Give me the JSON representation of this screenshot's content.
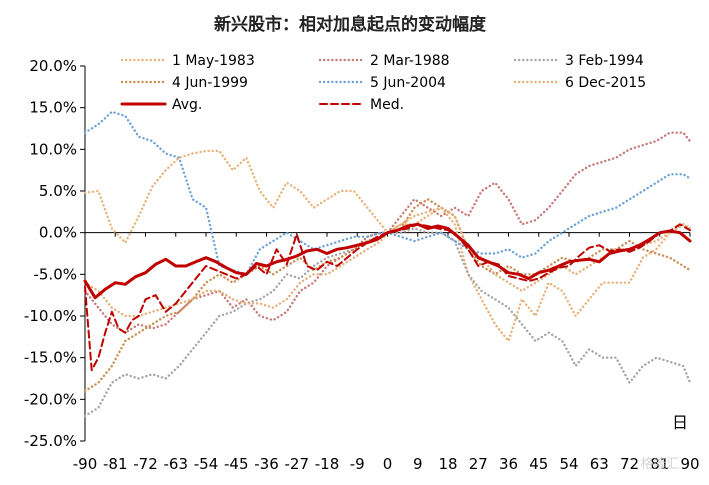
{
  "chart_data": {
    "type": "line",
    "title": "新兴股市：相对加息起点的变动幅度",
    "xlabel": "日",
    "ylabel": "",
    "x_ticks": [
      "-90",
      "-81",
      "-72",
      "-63",
      "-54",
      "-45",
      "-36",
      "-27",
      "-18",
      "-9",
      "0",
      "9",
      "18",
      "27",
      "36",
      "45",
      "54",
      "63",
      "72",
      "81",
      "90"
    ],
    "ylim": [
      -0.25,
      0.2
    ],
    "y_ticks": [
      "20.0%",
      "15.0%",
      "10.0%",
      "5.0%",
      "0.0%",
      "-5.0%",
      "-10.0%",
      "-15.0%",
      "-20.0%",
      "-25.0%"
    ],
    "grid": false,
    "legend_placement": "top",
    "watermark": "格隆汇",
    "series": [
      {
        "name": "1 May-1983",
        "color": "#E8B27A",
        "style": "dotted",
        "x": [
          -90,
          -86,
          -82,
          -78,
          -74,
          -70,
          -66,
          -62,
          -58,
          -54,
          -50,
          -46,
          -42,
          -38,
          -34,
          -30,
          -26,
          -22,
          -18,
          -14,
          -10,
          -6,
          -2,
          0,
          4,
          8,
          12,
          16,
          20,
          24,
          28,
          32,
          36,
          40,
          44,
          48,
          52,
          56,
          60,
          64,
          68,
          72,
          76,
          80,
          84,
          88,
          90
        ],
        "y": [
          0.048,
          0.05,
          0.005,
          -0.012,
          0.02,
          0.055,
          0.075,
          0.09,
          0.095,
          0.098,
          0.098,
          0.075,
          0.09,
          0.05,
          0.03,
          0.06,
          0.05,
          0.03,
          0.04,
          0.05,
          0.05,
          0.03,
          0.01,
          0.0,
          0.01,
          0.01,
          0.02,
          0.03,
          0.01,
          -0.05,
          -0.08,
          -0.11,
          -0.13,
          -0.08,
          -0.1,
          -0.06,
          -0.07,
          -0.1,
          -0.08,
          -0.06,
          -0.06,
          -0.06,
          -0.03,
          -0.02,
          0.0,
          0.01,
          0.005
        ]
      },
      {
        "name": "2 Mar-1988",
        "color": "#C77A7A",
        "style": "dotted",
        "x": [
          -90,
          -86,
          -82,
          -78,
          -74,
          -70,
          -66,
          -62,
          -58,
          -54,
          -50,
          -46,
          -42,
          -38,
          -34,
          -30,
          -26,
          -22,
          -18,
          -14,
          -10,
          -6,
          -2,
          0,
          4,
          8,
          12,
          16,
          20,
          24,
          28,
          32,
          36,
          40,
          44,
          48,
          52,
          56,
          60,
          64,
          68,
          72,
          76,
          80,
          84,
          88,
          90
        ],
        "y": [
          -0.07,
          -0.09,
          -0.11,
          -0.12,
          -0.11,
          -0.115,
          -0.11,
          -0.095,
          -0.08,
          -0.075,
          -0.07,
          -0.09,
          -0.08,
          -0.1,
          -0.105,
          -0.095,
          -0.07,
          -0.06,
          -0.04,
          -0.03,
          -0.02,
          -0.005,
          0.0,
          0.0,
          0.02,
          0.04,
          0.03,
          0.02,
          0.03,
          0.02,
          0.05,
          0.06,
          0.04,
          0.01,
          0.015,
          0.03,
          0.05,
          0.07,
          0.08,
          0.085,
          0.09,
          0.1,
          0.105,
          0.11,
          0.12,
          0.12,
          0.11
        ]
      },
      {
        "name": "3 Feb-1994",
        "color": "#A6A6A6",
        "style": "dotted",
        "x": [
          -90,
          -86,
          -82,
          -78,
          -74,
          -70,
          -66,
          -62,
          -58,
          -54,
          -50,
          -46,
          -42,
          -38,
          -34,
          -30,
          -26,
          -22,
          -18,
          -14,
          -10,
          -6,
          -2,
          0,
          4,
          8,
          12,
          16,
          20,
          24,
          28,
          32,
          36,
          40,
          44,
          48,
          52,
          56,
          60,
          64,
          68,
          72,
          76,
          80,
          84,
          88,
          90
        ],
        "y": [
          -0.22,
          -0.21,
          -0.18,
          -0.17,
          -0.175,
          -0.17,
          -0.175,
          -0.16,
          -0.14,
          -0.12,
          -0.1,
          -0.095,
          -0.085,
          -0.08,
          -0.07,
          -0.05,
          -0.055,
          -0.04,
          -0.03,
          -0.025,
          -0.02,
          -0.01,
          -0.005,
          0.0,
          0.0,
          0.005,
          0.0,
          0.0,
          -0.01,
          -0.05,
          -0.07,
          -0.08,
          -0.09,
          -0.11,
          -0.13,
          -0.12,
          -0.13,
          -0.16,
          -0.14,
          -0.15,
          -0.15,
          -0.18,
          -0.16,
          -0.15,
          -0.155,
          -0.16,
          -0.18
        ]
      },
      {
        "name": "4 Jun-1999",
        "color": "#C98E54",
        "style": "dotted",
        "x": [
          -90,
          -86,
          -82,
          -78,
          -74,
          -70,
          -66,
          -62,
          -58,
          -54,
          -50,
          -46,
          -42,
          -38,
          -34,
          -30,
          -26,
          -22,
          -18,
          -14,
          -10,
          -6,
          -2,
          0,
          4,
          8,
          12,
          16,
          20,
          24,
          28,
          32,
          36,
          40,
          44,
          48,
          52,
          56,
          60,
          64,
          68,
          72,
          76,
          80,
          84,
          88,
          90
        ],
        "y": [
          -0.19,
          -0.18,
          -0.16,
          -0.13,
          -0.12,
          -0.11,
          -0.1,
          -0.095,
          -0.08,
          -0.06,
          -0.05,
          -0.06,
          -0.05,
          -0.04,
          -0.05,
          -0.04,
          -0.03,
          -0.045,
          -0.035,
          -0.03,
          -0.02,
          -0.01,
          -0.005,
          0.0,
          0.005,
          0.03,
          0.04,
          0.03,
          0.02,
          -0.02,
          -0.04,
          -0.05,
          -0.04,
          -0.05,
          -0.05,
          -0.04,
          -0.03,
          -0.035,
          -0.03,
          -0.02,
          -0.02,
          -0.01,
          -0.02,
          -0.025,
          -0.03,
          -0.04,
          -0.045
        ]
      },
      {
        "name": "5 Jun-2004",
        "color": "#6FA3D6",
        "style": "dotted",
        "x": [
          -90,
          -86,
          -82,
          -78,
          -74,
          -70,
          -66,
          -62,
          -58,
          -54,
          -50,
          -46,
          -42,
          -38,
          -34,
          -30,
          -26,
          -22,
          -18,
          -14,
          -10,
          -6,
          -2,
          0,
          4,
          8,
          12,
          16,
          20,
          24,
          28,
          32,
          36,
          40,
          44,
          48,
          52,
          56,
          60,
          64,
          68,
          72,
          76,
          80,
          84,
          88,
          90
        ],
        "y": [
          0.12,
          0.13,
          0.145,
          0.14,
          0.115,
          0.11,
          0.095,
          0.09,
          0.04,
          0.03,
          -0.04,
          -0.045,
          -0.05,
          -0.02,
          -0.01,
          0.0,
          -0.01,
          -0.02,
          -0.015,
          -0.01,
          -0.005,
          -0.005,
          0.0,
          0.0,
          -0.005,
          -0.01,
          -0.005,
          0.0,
          -0.01,
          -0.02,
          -0.025,
          -0.025,
          -0.02,
          -0.03,
          -0.025,
          -0.01,
          0.0,
          0.01,
          0.02,
          0.025,
          0.03,
          0.04,
          0.05,
          0.06,
          0.07,
          0.07,
          0.065
        ]
      },
      {
        "name": "6 Dec-2015",
        "color": "#E3B07A",
        "style": "dotted",
        "x": [
          -90,
          -86,
          -82,
          -78,
          -74,
          -70,
          -66,
          -62,
          -58,
          -54,
          -50,
          -46,
          -42,
          -38,
          -34,
          -30,
          -26,
          -22,
          -18,
          -14,
          -10,
          -6,
          -2,
          0,
          4,
          8,
          12,
          16,
          20,
          24,
          28,
          32,
          36,
          40,
          44,
          48,
          52,
          56,
          60,
          64,
          68,
          72,
          76,
          80,
          84,
          88,
          90
        ],
        "y": [
          -0.06,
          -0.07,
          -0.09,
          -0.1,
          -0.1,
          -0.095,
          -0.09,
          -0.085,
          -0.08,
          -0.07,
          -0.07,
          -0.08,
          -0.085,
          -0.085,
          -0.09,
          -0.08,
          -0.06,
          -0.05,
          -0.05,
          -0.04,
          -0.03,
          -0.02,
          -0.01,
          0.0,
          0.01,
          0.02,
          0.025,
          0.03,
          0.02,
          -0.02,
          -0.03,
          -0.05,
          -0.06,
          -0.07,
          -0.06,
          -0.05,
          -0.04,
          -0.05,
          -0.04,
          -0.03,
          -0.02,
          -0.02,
          -0.015,
          -0.01,
          0.0,
          0.01,
          0.005
        ]
      },
      {
        "name": "Avg.",
        "color": "#C00000",
        "style": "solid",
        "x": [
          -90,
          -87,
          -84,
          -81,
          -78,
          -75,
          -72,
          -69,
          -66,
          -63,
          -60,
          -57,
          -54,
          -51,
          -48,
          -45,
          -42,
          -39,
          -36,
          -33,
          -30,
          -27,
          -24,
          -21,
          -18,
          -15,
          -12,
          -9,
          -6,
          -3,
          0,
          3,
          6,
          9,
          12,
          15,
          18,
          21,
          24,
          27,
          30,
          33,
          36,
          39,
          42,
          45,
          48,
          51,
          54,
          57,
          60,
          63,
          66,
          69,
          72,
          75,
          78,
          81,
          84,
          87,
          90
        ],
        "y": [
          -0.058,
          -0.078,
          -0.068,
          -0.06,
          -0.062,
          -0.053,
          -0.048,
          -0.038,
          -0.032,
          -0.04,
          -0.04,
          -0.035,
          -0.03,
          -0.035,
          -0.042,
          -0.048,
          -0.05,
          -0.037,
          -0.04,
          -0.035,
          -0.032,
          -0.028,
          -0.022,
          -0.02,
          -0.025,
          -0.02,
          -0.018,
          -0.015,
          -0.012,
          -0.008,
          0.0,
          0.003,
          0.008,
          0.01,
          0.005,
          0.008,
          0.005,
          -0.005,
          -0.015,
          -0.03,
          -0.035,
          -0.04,
          -0.048,
          -0.05,
          -0.055,
          -0.048,
          -0.045,
          -0.04,
          -0.035,
          -0.033,
          -0.032,
          -0.035,
          -0.025,
          -0.022,
          -0.02,
          -0.015,
          -0.008,
          0.0,
          0.002,
          0.0,
          -0.01
        ]
      },
      {
        "name": "Med.",
        "color": "#C00000",
        "style": "dashed",
        "x": [
          -90,
          -88,
          -86,
          -84,
          -82,
          -80,
          -78,
          -76,
          -74,
          -72,
          -69,
          -66,
          -63,
          -60,
          -57,
          -54,
          -51,
          -48,
          -45,
          -42,
          -39,
          -36,
          -33,
          -30,
          -27,
          -24,
          -21,
          -18,
          -15,
          -12,
          -9,
          -6,
          -3,
          0,
          3,
          6,
          9,
          12,
          15,
          18,
          21,
          24,
          27,
          30,
          33,
          36,
          39,
          42,
          45,
          48,
          51,
          54,
          57,
          60,
          63,
          66,
          69,
          72,
          75,
          78,
          81,
          84,
          87,
          90
        ],
        "y": [
          -0.065,
          -0.165,
          -0.15,
          -0.12,
          -0.095,
          -0.115,
          -0.12,
          -0.105,
          -0.1,
          -0.08,
          -0.075,
          -0.095,
          -0.085,
          -0.07,
          -0.055,
          -0.04,
          -0.045,
          -0.05,
          -0.055,
          -0.05,
          -0.04,
          -0.05,
          -0.02,
          -0.038,
          -0.002,
          -0.04,
          -0.045,
          -0.035,
          -0.04,
          -0.03,
          -0.02,
          -0.012,
          -0.005,
          0.0,
          0.003,
          0.005,
          0.01,
          0.008,
          0.005,
          0.003,
          -0.005,
          -0.02,
          -0.04,
          -0.035,
          -0.038,
          -0.052,
          -0.055,
          -0.058,
          -0.055,
          -0.048,
          -0.042,
          -0.04,
          -0.028,
          -0.018,
          -0.015,
          -0.022,
          -0.02,
          -0.023,
          -0.018,
          -0.01,
          0.0,
          0.002,
          0.01,
          0.003
        ]
      }
    ]
  }
}
